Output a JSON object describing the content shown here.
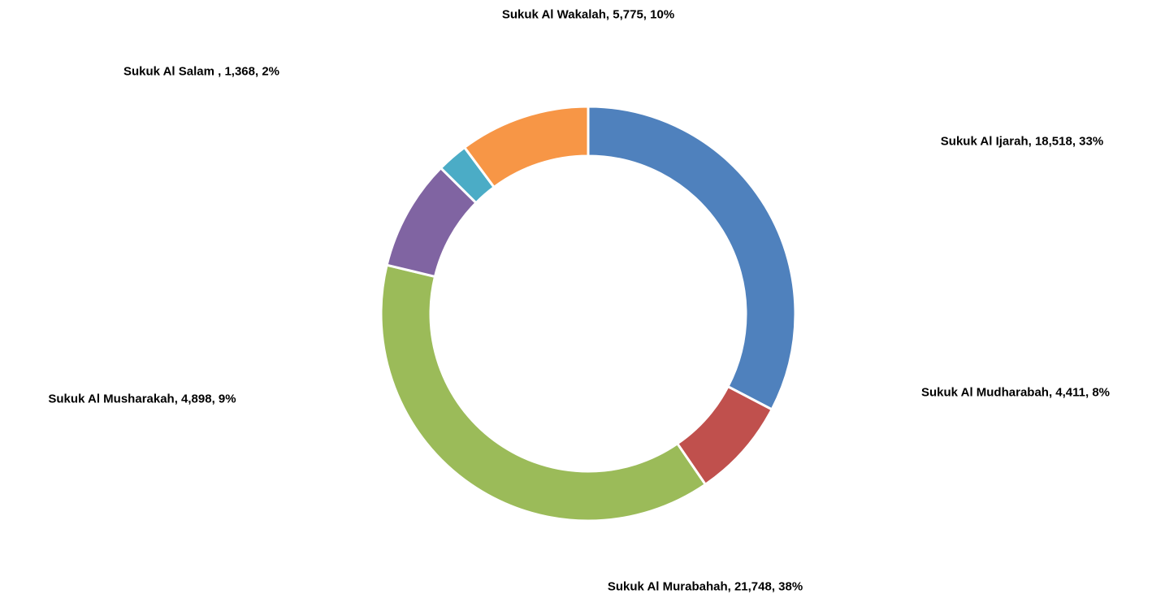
{
  "chart_data": {
    "type": "donut",
    "values": [
      18518,
      4411,
      21748,
      4898,
      1368,
      5775
    ],
    "value_labels": [
      "Sukuk Al Ijarah, 18,518, 33%",
      "Sukuk Al Mudharabah, 4,411, 8%",
      "Sukuk Al Murabahah, 21,748, 38%",
      "Sukuk Al Musharakah, 4,898, 9%",
      "Sukuk Al Salam , 1,368, 2%",
      "Sukuk Al Wakalah, 5,775, 10%"
    ],
    "colors": [
      "#4f81bd",
      "#c0504d",
      "#9bbb59",
      "#8064a2",
      "#4bacc6",
      "#f79646"
    ]
  }
}
